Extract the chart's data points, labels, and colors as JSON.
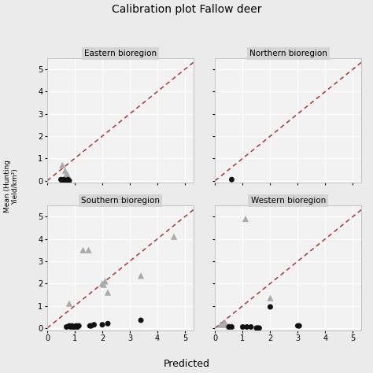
{
  "title": "Calibration plot Fallow deer",
  "xlabel": "Predicted",
  "panels": [
    "Eastern bioregion",
    "Northern bioregion",
    "Southern bioregion",
    "Western bioregion"
  ],
  "xlim": [
    0,
    5.3
  ],
  "ylim": [
    -0.1,
    5.5
  ],
  "xticks": [
    0,
    1,
    2,
    3,
    4,
    5
  ],
  "yticks": [
    0,
    1,
    2,
    3,
    4,
    5
  ],
  "panel_data": {
    "Eastern bioregion": {
      "triangles": [
        [
          0.55,
          0.7
        ],
        [
          0.65,
          0.45
        ],
        [
          0.7,
          0.3
        ],
        [
          0.75,
          0.25
        ]
      ],
      "circles": [
        [
          0.5,
          0.05
        ],
        [
          0.55,
          0.0
        ],
        [
          0.6,
          0.05
        ],
        [
          0.65,
          0.0
        ],
        [
          0.7,
          0.0
        ],
        [
          0.75,
          0.05
        ],
        [
          0.8,
          0.0
        ]
      ]
    },
    "Northern bioregion": {
      "triangles": [],
      "circles": [
        [
          0.6,
          0.05
        ]
      ]
    },
    "Southern bioregion": {
      "triangles": [
        [
          0.8,
          1.1
        ],
        [
          1.3,
          3.5
        ],
        [
          1.5,
          3.5
        ],
        [
          2.0,
          2.0
        ],
        [
          2.05,
          1.95
        ],
        [
          2.1,
          2.1
        ],
        [
          2.2,
          1.6
        ],
        [
          3.4,
          2.35
        ],
        [
          4.6,
          4.1
        ]
      ],
      "circles": [
        [
          0.7,
          0.05
        ],
        [
          0.8,
          0.1
        ],
        [
          0.85,
          0.05
        ],
        [
          0.9,
          0.1
        ],
        [
          0.95,
          0.05
        ],
        [
          1.0,
          0.05
        ],
        [
          1.05,
          0.1
        ],
        [
          1.1,
          0.05
        ],
        [
          1.15,
          0.1
        ],
        [
          1.55,
          0.1
        ],
        [
          1.6,
          0.1
        ],
        [
          1.7,
          0.15
        ],
        [
          2.0,
          0.15
        ],
        [
          2.2,
          0.2
        ],
        [
          3.4,
          0.35
        ]
      ]
    },
    "Western bioregion": {
      "triangles": [
        [
          0.2,
          0.15
        ],
        [
          0.3,
          0.2
        ],
        [
          0.35,
          0.25
        ],
        [
          0.4,
          0.15
        ],
        [
          0.5,
          0.1
        ],
        [
          0.6,
          0.1
        ],
        [
          1.1,
          4.9
        ],
        [
          2.0,
          1.35
        ]
      ],
      "circles": [
        [
          0.5,
          0.05
        ],
        [
          0.6,
          0.05
        ],
        [
          1.0,
          0.05
        ],
        [
          1.15,
          0.05
        ],
        [
          1.3,
          0.05
        ],
        [
          1.5,
          0.0
        ],
        [
          1.55,
          0.0
        ],
        [
          1.6,
          0.0
        ],
        [
          2.0,
          0.95
        ],
        [
          3.0,
          0.1
        ],
        [
          3.05,
          0.1
        ]
      ]
    }
  },
  "triangle_color": "#aaaaaa",
  "circle_color": "#111111",
  "diagonal_color": "#aa2222",
  "bg_color": "#ebebeb",
  "plot_bg": "#f2f2f2",
  "grid_color": "#ffffff",
  "panel_title_bg": "#d4d4d4"
}
